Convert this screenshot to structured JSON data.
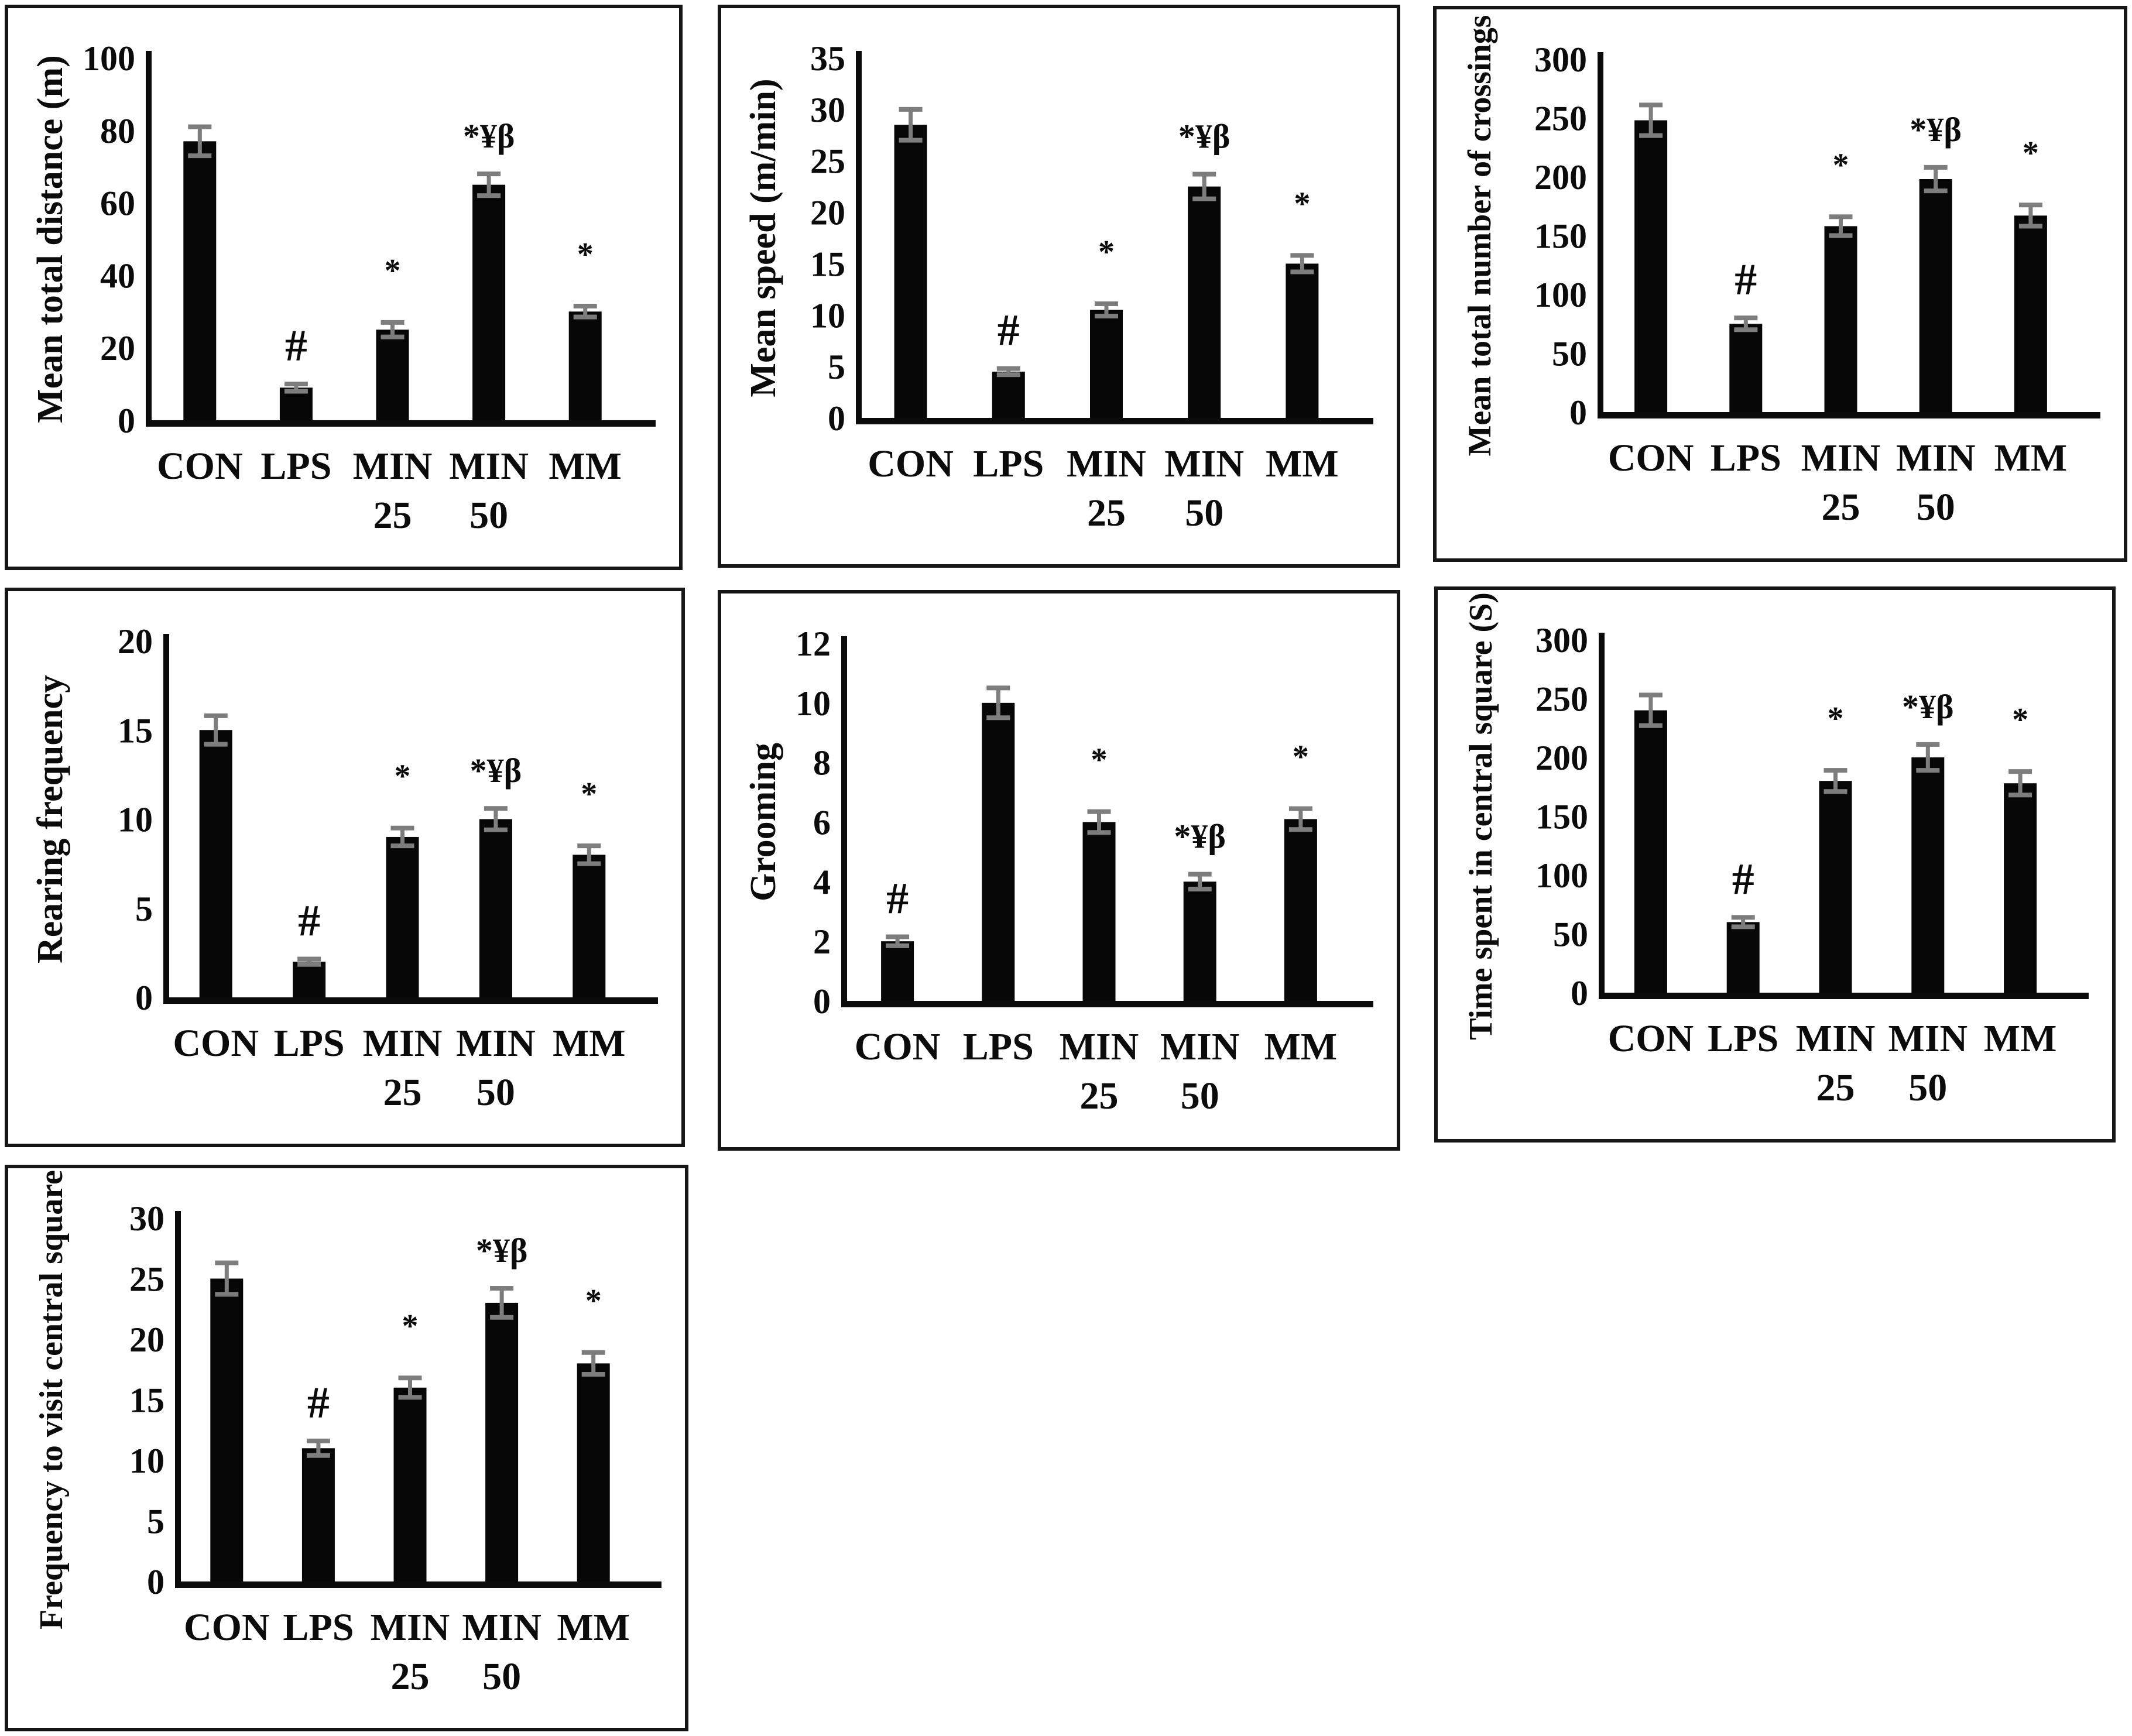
{
  "figure": {
    "description": "Seven-panel bar chart figure of open field behaviour measures",
    "groups": [
      "CON",
      "LPS",
      "MIN 25",
      "MIN 50",
      "MM"
    ],
    "significance_symbols": [
      "#",
      "*",
      "*¥β"
    ],
    "colors": {
      "bar": "#070707",
      "error_bar": "#7d7d7d",
      "axis": "#0b0b0b",
      "panel_border": "#161616",
      "background": "#ffffff"
    }
  },
  "chart_data": [
    {
      "type": "bar",
      "title": "",
      "xlabel": "",
      "ylabel": "Mean total distance (m)",
      "categories": [
        "CON",
        "LPS",
        "MIN 25",
        "MIN 50",
        "MM"
      ],
      "values": [
        77,
        9,
        25,
        65,
        30
      ],
      "errors": [
        4,
        1,
        2,
        3,
        1.5
      ],
      "annotations": [
        "",
        "#",
        "*",
        "*¥β",
        "*"
      ],
      "ylim": [
        0,
        100
      ],
      "yticks": [
        0,
        20,
        40,
        60,
        80,
        100
      ],
      "grid": false,
      "legend": false
    },
    {
      "type": "bar",
      "title": "",
      "xlabel": "",
      "ylabel": "Mean speed (m/min)",
      "categories": [
        "CON",
        "LPS",
        "MIN 25",
        "MIN 50",
        "MM"
      ],
      "values": [
        28.5,
        4.5,
        10.5,
        22.5,
        15
      ],
      "errors": [
        1.5,
        0.3,
        0.6,
        1.2,
        0.8
      ],
      "annotations": [
        "",
        "#",
        "*",
        "*¥β",
        "*"
      ],
      "ylim": [
        0,
        35
      ],
      "yticks": [
        0,
        5,
        10,
        15,
        20,
        25,
        30,
        35
      ],
      "grid": false,
      "legend": false
    },
    {
      "type": "bar",
      "title": "",
      "xlabel": "",
      "ylabel": "Mean total number of crossings",
      "categories": [
        "CON",
        "LPS",
        "MIN 25",
        "MIN 50",
        "MM"
      ],
      "values": [
        248,
        75,
        158,
        198,
        167
      ],
      "errors": [
        13,
        5,
        8,
        10,
        9
      ],
      "annotations": [
        "",
        "#",
        "*",
        "*¥β",
        "*"
      ],
      "ylim": [
        0,
        300
      ],
      "yticks": [
        0,
        50,
        100,
        150,
        200,
        250,
        300
      ],
      "grid": false,
      "legend": false
    },
    {
      "type": "bar",
      "title": "",
      "xlabel": "",
      "ylabel": "Rearing frequency",
      "categories": [
        "CON",
        "LPS",
        "MIN 25",
        "MIN 50",
        "MM"
      ],
      "values": [
        15,
        2,
        9,
        10,
        8
      ],
      "errors": [
        0.8,
        0.15,
        0.5,
        0.6,
        0.5
      ],
      "annotations": [
        "",
        "#",
        "*",
        "*¥β",
        "*"
      ],
      "ylim": [
        0,
        20
      ],
      "yticks": [
        0,
        5,
        10,
        15,
        20
      ],
      "grid": false,
      "legend": false
    },
    {
      "type": "bar",
      "title": "",
      "xlabel": "",
      "ylabel": "Grooming",
      "categories": [
        "CON",
        "LPS",
        "MIN 25",
        "MIN 50",
        "MM"
      ],
      "values": [
        2,
        10,
        6,
        4,
        6.1
      ],
      "errors": [
        0.15,
        0.5,
        0.35,
        0.25,
        0.35
      ],
      "annotations": [
        "#",
        "",
        "*",
        "*¥β",
        "*"
      ],
      "ylim": [
        0,
        12
      ],
      "yticks": [
        0,
        2,
        4,
        6,
        8,
        10,
        12
      ],
      "grid": false,
      "legend": false
    },
    {
      "type": "bar",
      "title": "",
      "xlabel": "",
      "ylabel": "Time spent in central square (S)",
      "categories": [
        "CON",
        "LPS",
        "MIN 25",
        "MIN 50",
        "MM"
      ],
      "values": [
        240,
        60,
        180,
        200,
        178
      ],
      "errors": [
        13,
        4,
        9,
        11,
        10
      ],
      "annotations": [
        "",
        "#",
        "*",
        "*¥β",
        "*"
      ],
      "ylim": [
        0,
        300
      ],
      "yticks": [
        0,
        50,
        100,
        150,
        200,
        250,
        300
      ],
      "grid": false,
      "legend": false
    },
    {
      "type": "bar",
      "title": "",
      "xlabel": "",
      "ylabel": "Frequency to visit central square",
      "categories": [
        "CON",
        "LPS",
        "MIN 25",
        "MIN 50",
        "MM"
      ],
      "values": [
        25,
        11,
        16,
        23,
        18
      ],
      "errors": [
        1.3,
        0.6,
        0.8,
        1.2,
        0.9
      ],
      "annotations": [
        "",
        "#",
        "*",
        "*¥β",
        "*"
      ],
      "ylim": [
        0,
        30
      ],
      "yticks": [
        0,
        5,
        10,
        15,
        20,
        25,
        30
      ],
      "grid": false,
      "legend": false
    }
  ]
}
